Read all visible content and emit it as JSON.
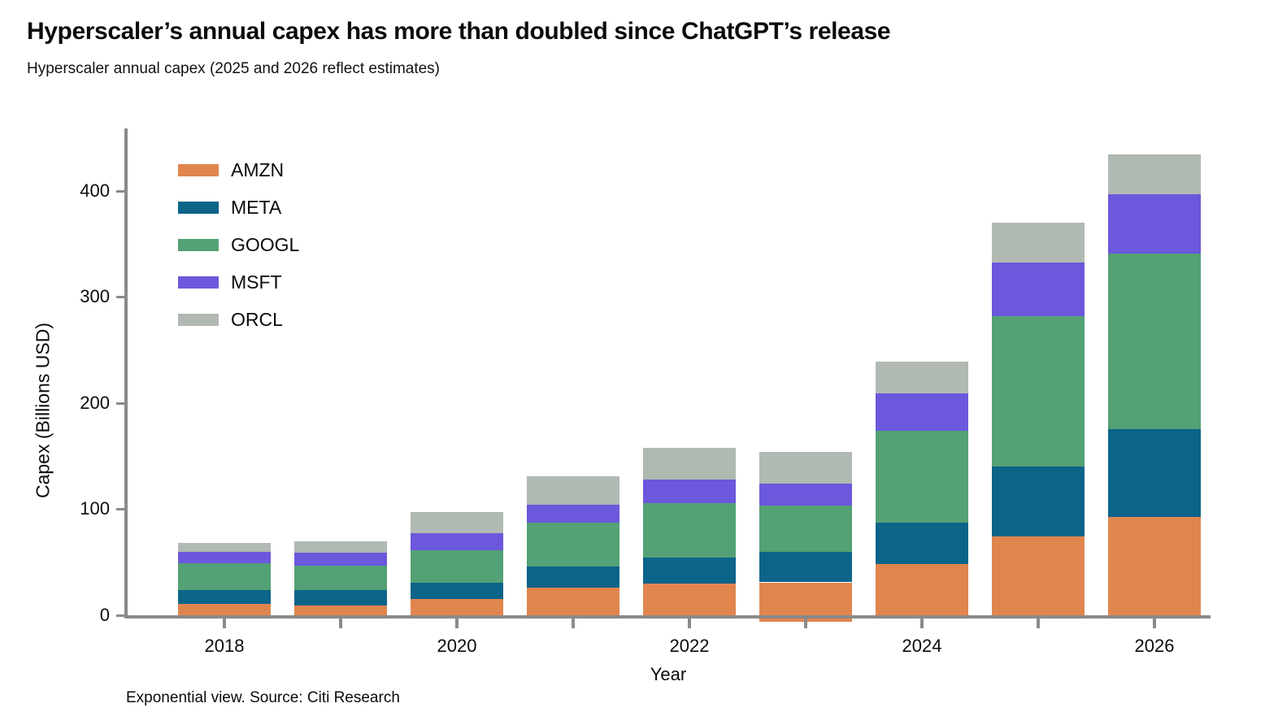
{
  "chart_data": {
    "type": "bar",
    "stacked": true,
    "title": "Hyperscaler’s annual capex has more than doubled since ChatGPT’s release",
    "subtitle": "Hyperscaler annual capex (2025 and 2026 reflect estimates)",
    "source_note": "Exponential view. Source: Citi Research",
    "xlabel": "Year",
    "ylabel": "Capex (Billions USD)",
    "units": "Billions USD",
    "categories": [
      "2018",
      "2019",
      "2020",
      "2021",
      "2022",
      "2023",
      "2024",
      "2025",
      "2026"
    ],
    "x_axis_tick_labels_shown": [
      "2018",
      "2020",
      "2022",
      "2024",
      "2026"
    ],
    "yticks": [
      0,
      100,
      200,
      300,
      400
    ],
    "ylim": [
      0,
      459
    ],
    "grid": false,
    "legend_position": "top-left",
    "series": [
      {
        "name": "AMZN",
        "color": "#E1854F",
        "values": [
          11,
          9,
          15,
          26,
          30,
          31,
          48,
          74,
          93
        ]
      },
      {
        "name": "META",
        "color": "#0C6489",
        "values": [
          13,
          15,
          16,
          20,
          24,
          29,
          39,
          66,
          82
        ]
      },
      {
        "name": "GOOGL",
        "color": "#53A175",
        "values": [
          25,
          23,
          30,
          41,
          52,
          43,
          87,
          142,
          166
        ]
      },
      {
        "name": "MSFT",
        "color": "#6B58DC",
        "values": [
          11,
          12,
          16,
          17,
          22,
          21,
          35,
          50,
          56
        ]
      },
      {
        "name": "ORCL",
        "color": "#B0B9B2",
        "values": [
          8,
          11,
          20,
          27,
          30,
          30,
          30,
          38,
          37
        ]
      }
    ],
    "stack_totals": [
      68,
      70,
      97,
      131,
      158,
      154,
      239,
      370,
      434
    ],
    "axis_color": "#8A8A8A",
    "text_color": "#0B0B0B"
  }
}
